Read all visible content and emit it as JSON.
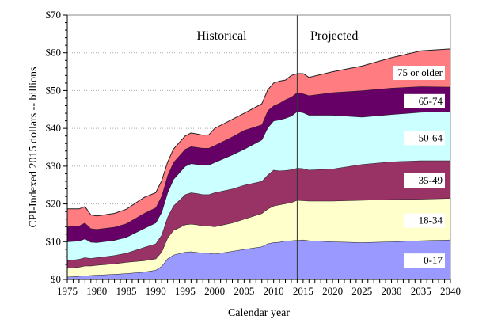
{
  "chart_data": {
    "type": "area",
    "stacked": true,
    "title": "",
    "xlabel": "Calendar year",
    "ylabel": "CPI-Indexed 2015 dollars -- billions",
    "xlim": [
      1975,
      2040
    ],
    "ylim": [
      0,
      70
    ],
    "x_ticks": [
      "1975",
      "1980",
      "1985",
      "1990",
      "1995",
      "2000",
      "2005",
      "2010",
      "2015",
      "2020",
      "2025",
      "2030",
      "2035",
      "2040"
    ],
    "y_ticks": [
      "$0",
      "$10",
      "$20",
      "$30",
      "$40",
      "$50",
      "$60",
      "$70"
    ],
    "grid": "horizontal-dotted",
    "annotations": [
      {
        "text": "Historical",
        "region": "left of divider"
      },
      {
        "text": "Projected",
        "region": "right of divider"
      }
    ],
    "divider_year": 2014,
    "x": [
      1975,
      1977,
      1978,
      1979,
      1980,
      1983,
      1985,
      1988,
      1990,
      1991,
      1992,
      1993,
      1995,
      1996,
      1997,
      1998,
      1999,
      2000,
      2003,
      2005,
      2008,
      2009,
      2010,
      2011,
      2012,
      2013,
      2014,
      2015,
      2016,
      2020,
      2025,
      2030,
      2035,
      2040
    ],
    "series": [
      {
        "name": "0-17",
        "color": "#9999ff",
        "values": [
          0.7,
          0.9,
          1.0,
          1.1,
          1.2,
          1.4,
          1.6,
          2.0,
          2.5,
          3.5,
          5.5,
          6.5,
          7.3,
          7.4,
          7.2,
          7.0,
          7.0,
          6.8,
          7.5,
          8.0,
          8.7,
          9.5,
          9.8,
          9.9,
          10.2,
          10.3,
          10.4,
          10.5,
          10.3,
          10.0,
          9.8,
          10.0,
          10.3,
          10.5
        ]
      },
      {
        "name": "18-34",
        "color": "#ffffcc",
        "values": [
          2.3,
          2.4,
          2.6,
          2.5,
          2.6,
          2.8,
          3.0,
          3.0,
          3.0,
          3.8,
          5.5,
          6.5,
          7.2,
          7.3,
          7.3,
          7.2,
          7.2,
          7.2,
          7.5,
          8.0,
          8.8,
          9.2,
          9.7,
          9.9,
          9.9,
          10.1,
          10.6,
          10.4,
          10.5,
          10.8,
          11.2,
          11.2,
          11.0,
          11.0
        ]
      },
      {
        "name": "35-49",
        "color": "#993366",
        "values": [
          2.0,
          2.1,
          2.2,
          2.0,
          2.0,
          2.2,
          2.4,
          3.5,
          4.0,
          4.5,
          5.5,
          6.5,
          8.0,
          8.3,
          8.3,
          8.3,
          8.3,
          9.0,
          9.0,
          9.0,
          8.5,
          9.0,
          9.5,
          9.0,
          8.8,
          8.7,
          8.5,
          8.5,
          8.2,
          8.5,
          9.5,
          10.0,
          10.2,
          10.0
        ]
      },
      {
        "name": "50-64",
        "color": "#ccffff",
        "values": [
          5.0,
          4.8,
          5.0,
          4.3,
          4.0,
          4.0,
          4.2,
          5.0,
          5.5,
          6.0,
          6.5,
          7.0,
          7.5,
          7.7,
          7.7,
          7.8,
          7.8,
          8.0,
          9.0,
          9.5,
          11.0,
          12.5,
          13.0,
          13.5,
          13.8,
          14.2,
          15.0,
          14.8,
          14.5,
          14.2,
          12.5,
          12.5,
          12.8,
          13.0
        ]
      },
      {
        "name": "65-74",
        "color": "#660066",
        "values": [
          4.0,
          4.0,
          4.2,
          3.6,
          3.5,
          3.5,
          3.6,
          4.0,
          4.0,
          4.3,
          4.5,
          4.5,
          4.5,
          4.5,
          4.5,
          4.5,
          4.5,
          4.5,
          4.8,
          5.0,
          4.0,
          4.5,
          4.0,
          4.4,
          4.9,
          5.0,
          5.0,
          5.0,
          5.2,
          6.0,
          7.0,
          7.0,
          6.8,
          6.5
        ]
      },
      {
        "name": "75 or older",
        "color": "#ff7c80",
        "values": [
          4.7,
          4.5,
          4.3,
          3.6,
          3.5,
          3.6,
          3.8,
          4.2,
          4.0,
          4.0,
          3.5,
          3.5,
          3.5,
          3.6,
          3.5,
          3.4,
          3.5,
          4.5,
          4.6,
          4.5,
          5.5,
          5.5,
          6.0,
          5.8,
          5.2,
          5.7,
          5.0,
          5.3,
          4.8,
          5.5,
          6.5,
          8.0,
          9.4,
          10.0
        ]
      }
    ]
  }
}
